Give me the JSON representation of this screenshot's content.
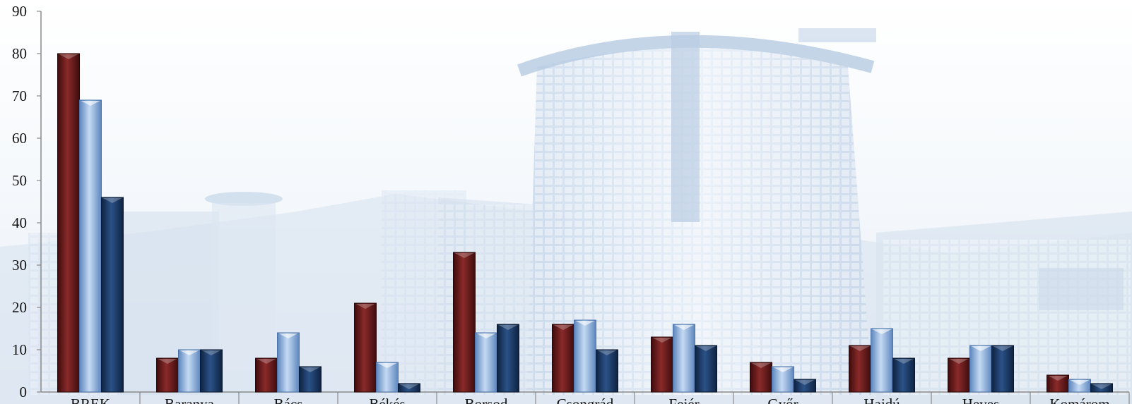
{
  "chart_data": {
    "type": "bar",
    "title": "",
    "xlabel": "",
    "ylabel": "",
    "ylim": [
      0,
      90
    ],
    "y_ticks": [
      "0",
      "10",
      "20",
      "30",
      "40",
      "50",
      "60",
      "70",
      "80",
      "90"
    ],
    "categories": [
      "BREK",
      "Baranya",
      "Bács",
      "Békés",
      "Borsod",
      "Csongrád",
      "Fejér",
      "Győr",
      "Hajdú",
      "Heves",
      "Komárom"
    ],
    "series": [
      {
        "values": [
          80,
          8,
          8,
          21,
          33,
          16,
          13,
          7,
          11,
          8,
          4
        ]
      },
      {
        "values": [
          69,
          10,
          14,
          7,
          14,
          17,
          16,
          6,
          15,
          11,
          3
        ]
      },
      {
        "values": [
          46,
          10,
          6,
          2,
          16,
          10,
          11,
          3,
          8,
          11,
          2
        ]
      }
    ],
    "legend": "none",
    "grid": false,
    "background": "faded photograph of a curved office building",
    "colors": {
      "series_1": "#6b1f1f",
      "series_2": "#8fb4e0",
      "series_3": "#1d3d66",
      "axis": "#8a8a8a",
      "background_tint": "#dce6f1"
    }
  }
}
